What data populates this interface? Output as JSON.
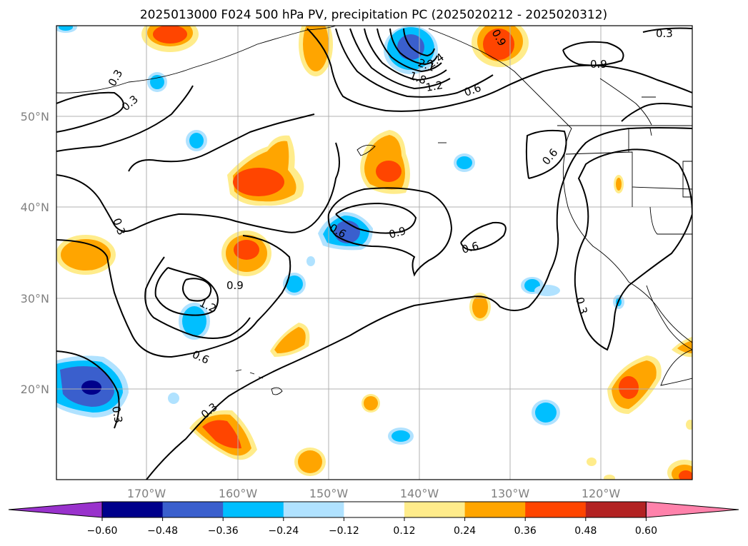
{
  "title": "2025013000 F024 500 hPa PV, precipitation PC (2025020212 - 2025020312)",
  "lat_labels": [
    "50°N",
    "40°N",
    "30°N",
    "20°N"
  ],
  "lon_labels": [
    "170°W",
    "160°W",
    "150°W",
    "140°W",
    "130°W",
    "120°W"
  ],
  "colorbar": {
    "tick_labels": [
      "−0.60",
      "−0.48",
      "−0.36",
      "−0.24",
      "−0.12",
      "0.12",
      "0.24",
      "0.36",
      "0.48",
      "0.60"
    ],
    "colors": [
      "#9932cc",
      "#00008b",
      "#3a5fcd",
      "#00bfff",
      "#b0e2ff",
      "#ffffff",
      "#ffec8b",
      "#ffa500",
      "#ff4500",
      "#b22222",
      "#ff82ab"
    ]
  },
  "contour_labels": [
    "0.3",
    "0.3",
    "0.3",
    "0.3",
    "0.3",
    "0.3",
    "0.3",
    "0.6",
    "0.6",
    "0.6",
    "0.6",
    "0.6",
    "0.9",
    "0.9",
    "0.9",
    "0.9",
    "1.2",
    "1.2",
    "1.8",
    "2.1",
    "2.4"
  ]
}
